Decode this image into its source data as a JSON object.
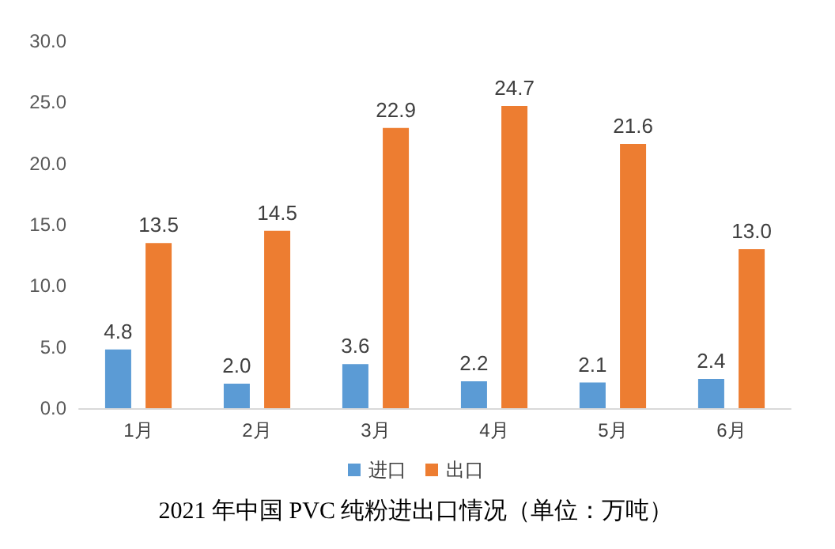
{
  "chart_data": {
    "type": "bar",
    "title": "2021 年中国 PVC 纯粉进出口情况（单位：万吨）",
    "categories": [
      "1月",
      "2月",
      "3月",
      "4月",
      "5月",
      "6月"
    ],
    "series": [
      {
        "name": "进口",
        "color": "#5b9bd5",
        "values": [
          4.8,
          2.0,
          3.6,
          2.2,
          2.1,
          2.4
        ],
        "value_labels": [
          "4.8",
          "2.0",
          "3.6",
          "2.2",
          "2.1",
          "2.4"
        ]
      },
      {
        "name": "出口",
        "color": "#ed7d31",
        "values": [
          13.5,
          14.5,
          22.9,
          24.7,
          21.6,
          13.0
        ],
        "value_labels": [
          "13.5",
          "14.5",
          "22.9",
          "24.7",
          "21.6",
          "13.0"
        ]
      }
    ],
    "ylim": [
      0,
      30
    ],
    "yticks": [
      {
        "value": 0,
        "label": "0.0"
      },
      {
        "value": 5,
        "label": "5.0"
      },
      {
        "value": 10,
        "label": "10.0"
      },
      {
        "value": 15,
        "label": "15.0"
      },
      {
        "value": 20,
        "label": "20.0"
      },
      {
        "value": 25,
        "label": "25.0"
      },
      {
        "value": 30,
        "label": "30.0"
      }
    ],
    "grid": false,
    "legend": "bottom"
  }
}
